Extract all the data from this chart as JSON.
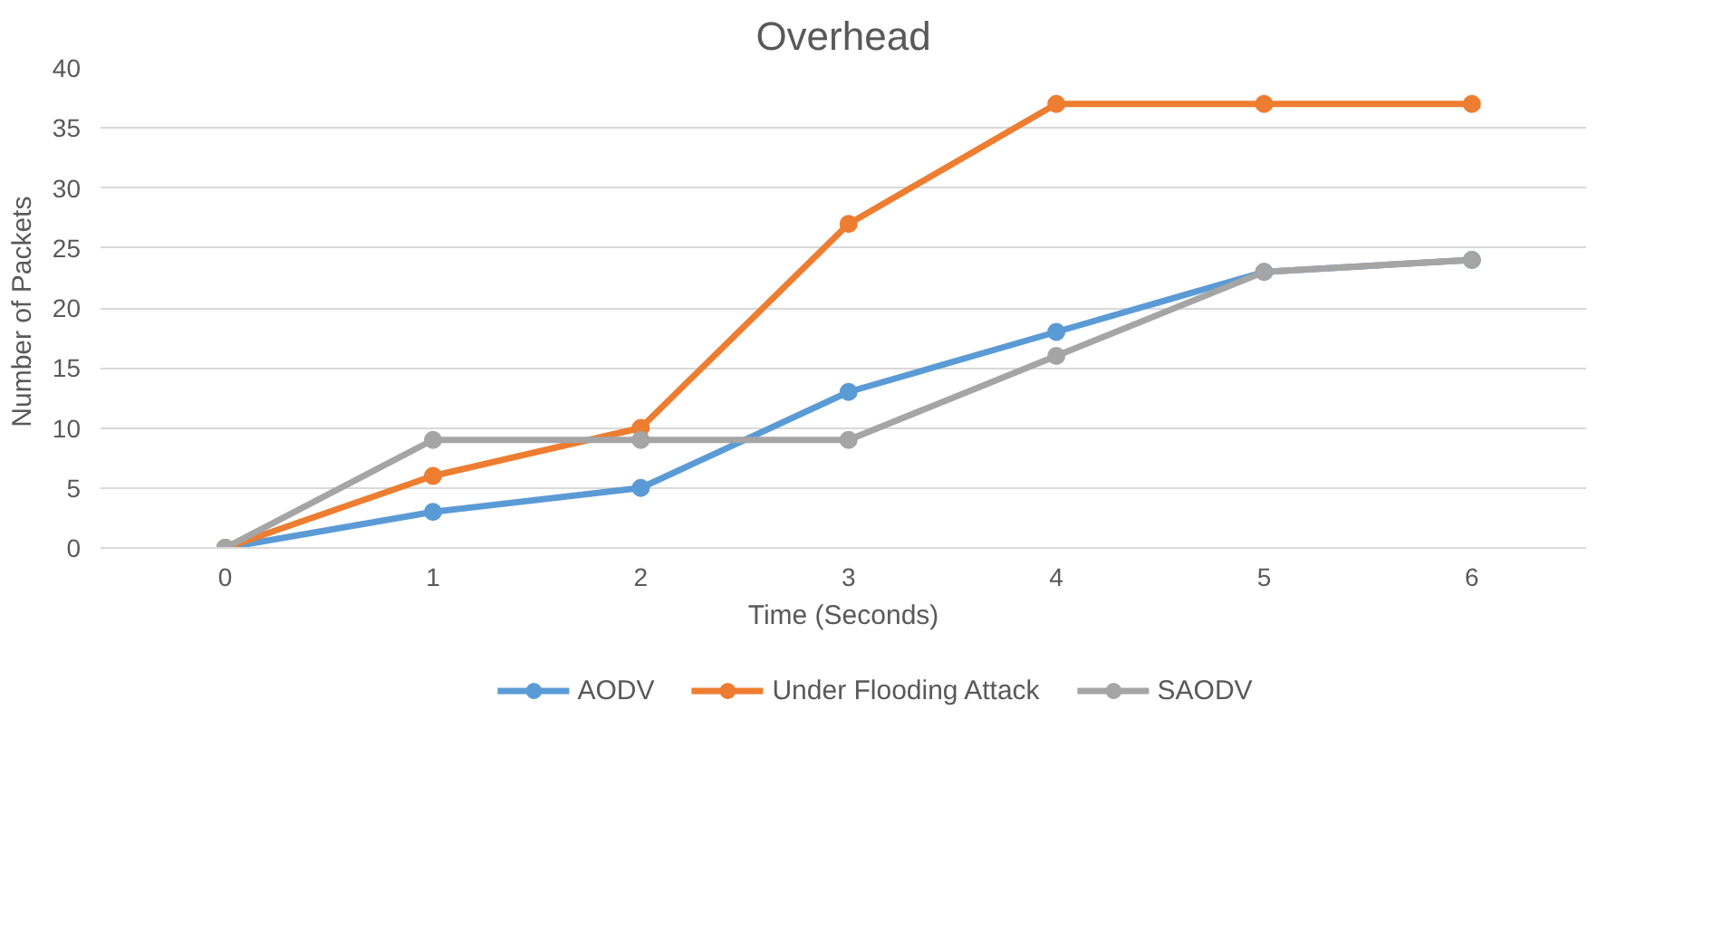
{
  "chart_data": {
    "type": "line",
    "title": "Overhead",
    "xlabel": "Time (Seconds)",
    "ylabel": "Number  of Packets",
    "categories": [
      "0",
      "1",
      "2",
      "3",
      "4",
      "5",
      "6"
    ],
    "series": [
      {
        "name": "AODV",
        "color": "#5b9bd5",
        "values": [
          0,
          3,
          5,
          13,
          18,
          23,
          24
        ]
      },
      {
        "name": "Under Flooding Attack",
        "color": "#ed7d31",
        "values": [
          0,
          6,
          10,
          27,
          37,
          37,
          37
        ]
      },
      {
        "name": "SAODV",
        "color": "#a5a5a5",
        "values": [
          0,
          9,
          9,
          9,
          16,
          23,
          24
        ]
      }
    ],
    "ylim": [
      0,
      40
    ],
    "yticks": [
      0,
      5,
      10,
      15,
      20,
      25,
      30,
      35,
      40
    ],
    "grid": "y",
    "legend": "bottom",
    "marker": "circle",
    "line_style": "solid"
  }
}
